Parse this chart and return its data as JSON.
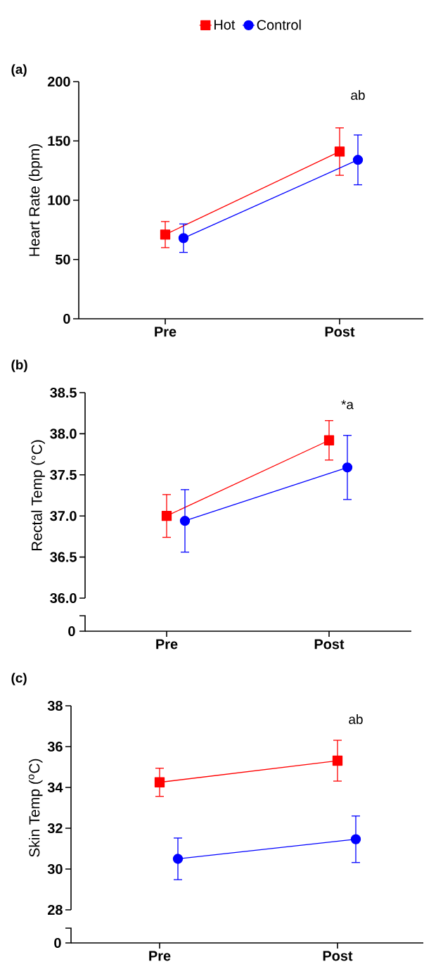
{
  "chart_data": [
    {
      "type": "line",
      "title": "(a)",
      "ylabel": "Heart  Rate (bpm)",
      "categories": [
        "Pre",
        "Post"
      ],
      "ylim": [
        0,
        200
      ],
      "yticks": [
        0,
        50,
        100,
        150,
        200
      ],
      "legend": "top",
      "tick_labels": "xy",
      "annotations": [
        "ab"
      ],
      "series": [
        {
          "name": "Hot",
          "color": "#ff0000",
          "marker": "square",
          "values": [
            71,
            141
          ],
          "errors": [
            11,
            20
          ]
        },
        {
          "name": "Control",
          "color": "#0000ff",
          "marker": "circle",
          "values": [
            68,
            134
          ],
          "errors": [
            12,
            21
          ]
        }
      ]
    },
    {
      "type": "line",
      "title": "(b)",
      "ylabel": "Rectal Temp (°C)",
      "categories": [
        "Pre",
        "Post"
      ],
      "ylim": [
        36,
        38.5
      ],
      "yticks": [
        {
          "value": 36,
          "label": "36.0"
        },
        {
          "value": 36.5,
          "label": "36.5"
        },
        {
          "value": 37,
          "label": "37.0"
        },
        {
          "value": 37.5,
          "label": "37.5"
        },
        {
          "value": 38,
          "label": "38.0"
        },
        {
          "value": 38.5,
          "label": "38.5"
        }
      ],
      "annotations": [
        "*a",
        "0"
      ],
      "series": [
        {
          "color": "#ff0000",
          "marker": "square",
          "values": [
            37.0,
            37.92
          ],
          "errors": [
            0.26,
            0.24
          ]
        },
        {
          "color": "#0000ff",
          "marker": "circle",
          "values": [
            36.94,
            37.59
          ],
          "errors": [
            0.38,
            0.39
          ]
        }
      ]
    },
    {
      "type": "line",
      "title": "(c)",
      "ylabel": "Skin Temp ($^{o}$C)",
      "categories": [
        "Pre",
        "Post"
      ],
      "ylim": [
        28,
        38
      ],
      "yticks": [
        28,
        30,
        32,
        34,
        36,
        38
      ],
      "annotations": [
        "ab",
        "0"
      ],
      "series": [
        {
          "color": "#ff0000",
          "marker": "square",
          "values": [
            34.25,
            35.31
          ],
          "errors": [
            0.69,
            1.0
          ]
        },
        {
          "color": "#0000ff",
          "marker": "circle",
          "values": [
            30.5,
            31.46
          ],
          "errors": [
            1.02,
            1.14
          ]
        }
      ]
    }
  ]
}
